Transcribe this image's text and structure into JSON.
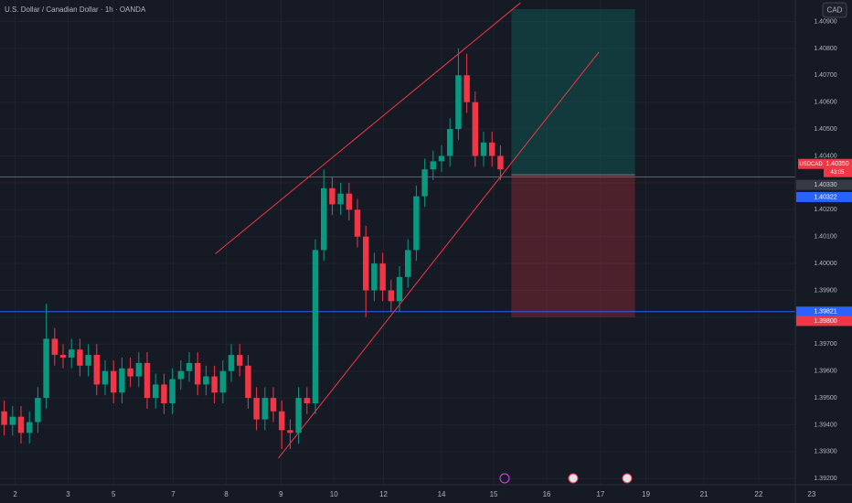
{
  "chart_data": {
    "type": "candlestick",
    "title": "U.S. Dollar / Canadian Dollar · 1h · OANDA",
    "currency": "CAD",
    "up_color": "#089981",
    "down_color": "#f23645",
    "open": [
      1.3945,
      1.394,
      1.3943,
      1.3937,
      1.3941,
      1.395,
      1.3972,
      1.3966,
      1.3965,
      1.3968,
      1.3962,
      1.3966,
      1.3955,
      1.396,
      1.3952,
      1.3961,
      1.3958,
      1.3963,
      1.395,
      1.3955,
      1.3948,
      1.3957,
      1.396,
      1.3963,
      1.3955,
      1.3958,
      1.3952,
      1.396,
      1.3966,
      1.3962,
      1.395,
      1.3942,
      1.395,
      1.3945,
      1.3938,
      1.3937,
      1.395,
      1.3948,
      1.4005,
      1.4028,
      1.4022,
      1.4026,
      1.402,
      1.401,
      1.399,
      1.4,
      1.399,
      1.3986,
      1.3995,
      1.4005,
      1.4025,
      1.4035,
      1.4038,
      1.404,
      1.405,
      1.407,
      1.406,
      1.404,
      1.4045,
      1.404
    ],
    "high": [
      1.3949,
      1.3947,
      1.3947,
      1.3945,
      1.3954,
      1.3985,
      1.3976,
      1.397,
      1.3972,
      1.3972,
      1.397,
      1.397,
      1.3964,
      1.3964,
      1.3965,
      1.3965,
      1.3967,
      1.3967,
      1.3959,
      1.3959,
      1.3961,
      1.3964,
      1.3967,
      1.3967,
      1.3962,
      1.3962,
      1.3964,
      1.397,
      1.397,
      1.3966,
      1.3954,
      1.3954,
      1.3954,
      1.3949,
      1.3942,
      1.3954,
      1.3954,
      1.4009,
      1.4035,
      1.4032,
      1.403,
      1.403,
      1.4024,
      1.4014,
      1.4004,
      1.4004,
      1.3994,
      1.3999,
      1.4009,
      1.4029,
      1.4039,
      1.4042,
      1.4044,
      1.4054,
      1.408,
      1.4078,
      1.4064,
      1.4049,
      1.4049,
      1.4044
    ],
    "low": [
      1.3936,
      1.3936,
      1.3933,
      1.3933,
      1.3937,
      1.3946,
      1.3962,
      1.3961,
      1.3961,
      1.3958,
      1.3958,
      1.3951,
      1.3951,
      1.3948,
      1.3948,
      1.3954,
      1.3954,
      1.3946,
      1.3946,
      1.3944,
      1.3944,
      1.3953,
      1.3956,
      1.3951,
      1.3951,
      1.3948,
      1.3948,
      1.3956,
      1.3958,
      1.3946,
      1.3938,
      1.3938,
      1.3941,
      1.3931,
      1.3931,
      1.3933,
      1.3944,
      1.3944,
      1.4001,
      1.4018,
      1.4018,
      1.4016,
      1.4006,
      1.398,
      1.3986,
      1.3986,
      1.3982,
      1.3982,
      1.3991,
      1.4001,
      1.4021,
      1.4031,
      1.4034,
      1.4036,
      1.4046,
      1.4056,
      1.4036,
      1.4036,
      1.4036,
      1.4031
    ],
    "close": [
      1.394,
      1.3943,
      1.3937,
      1.3941,
      1.395,
      1.3972,
      1.3966,
      1.3965,
      1.3968,
      1.3962,
      1.3966,
      1.3955,
      1.396,
      1.3952,
      1.3961,
      1.3958,
      1.3963,
      1.395,
      1.3955,
      1.3948,
      1.3957,
      1.396,
      1.3963,
      1.3955,
      1.3958,
      1.3952,
      1.396,
      1.3966,
      1.3962,
      1.395,
      1.3942,
      1.395,
      1.3945,
      1.3938,
      1.3937,
      1.395,
      1.3948,
      1.4005,
      1.4028,
      1.4022,
      1.4026,
      1.402,
      1.401,
      1.399,
      1.4,
      1.399,
      1.3986,
      1.3995,
      1.4005,
      1.4025,
      1.4035,
      1.4038,
      1.404,
      1.405,
      1.407,
      1.406,
      1.404,
      1.4045,
      1.404,
      1.4035
    ],
    "xlim": [
      -0.5,
      100.8
    ],
    "ylim": [
      1.3915,
      1.4098
    ],
    "xticks": [
      {
        "value": 1.3,
        "label": "2"
      },
      {
        "value": 7.6,
        "label": "3"
      },
      {
        "value": 13,
        "label": "5"
      },
      {
        "value": 20.1,
        "label": "7"
      },
      {
        "value": 26.4,
        "label": "8"
      },
      {
        "value": 32.9,
        "label": "9"
      },
      {
        "value": 39.2,
        "label": "10"
      },
      {
        "value": 45.1,
        "label": "12"
      },
      {
        "value": 52,
        "label": "14"
      },
      {
        "value": 58.2,
        "label": "15"
      },
      {
        "value": 64.5,
        "label": "16"
      },
      {
        "value": 70.9,
        "label": "17"
      },
      {
        "value": 76.3,
        "label": "19"
      },
      {
        "value": 83.2,
        "label": "21"
      },
      {
        "value": 89.7,
        "label": "22"
      },
      {
        "value": 96,
        "label": "23"
      }
    ],
    "yticks": [
      {
        "value": 1.409,
        "label": "1.40900"
      },
      {
        "value": 1.408,
        "label": "1.40800"
      },
      {
        "value": 1.407,
        "label": "1.40700"
      },
      {
        "value": 1.406,
        "label": "1.40600"
      },
      {
        "value": 1.405,
        "label": "1.40500"
      },
      {
        "value": 1.404,
        "label": "1.40400"
      },
      {
        "value": 1.403,
        "label": "1.40300"
      },
      {
        "value": 1.402,
        "label": "1.40200"
      },
      {
        "value": 1.401,
        "label": "1.40100"
      },
      {
        "value": 1.4,
        "label": "1.40000"
      },
      {
        "value": 1.399,
        "label": "1.39900"
      },
      {
        "value": 1.398,
        "label": "1.39800"
      },
      {
        "value": 1.397,
        "label": "1.39700"
      },
      {
        "value": 1.396,
        "label": "1.39600"
      },
      {
        "value": 1.395,
        "label": "1.39500"
      },
      {
        "value": 1.394,
        "label": "1.39400"
      },
      {
        "value": 1.393,
        "label": "1.39300"
      },
      {
        "value": 1.392,
        "label": "1.39200"
      }
    ],
    "grid": true,
    "hlines": [
      {
        "value": 1.40322,
        "label": "1.40322",
        "color": "#2962ff"
      },
      {
        "value": 1.39821,
        "label": "1.39821",
        "color": "#2962ff"
      }
    ],
    "trendlines": [
      {
        "x": [
          25.1,
          61.4
        ],
        "y": [
          1.40036,
          1.4097
        ],
        "color": "#f23645"
      },
      {
        "x": [
          32.6,
          70.7
        ],
        "y": [
          1.39276,
          1.40786
        ],
        "color": "#f23645"
      }
    ],
    "position": {
      "x": [
        60.3,
        75
      ],
      "target": 1.40946,
      "entry": {
        "value": 1.4033,
        "label": "1.40330"
      },
      "stop": {
        "value": 1.398,
        "label": "1.39800"
      }
    },
    "last_price": {
      "symbol": "USDCAD",
      "value": 1.4035,
      "label": "1.40350",
      "countdown": "43:05"
    }
  }
}
